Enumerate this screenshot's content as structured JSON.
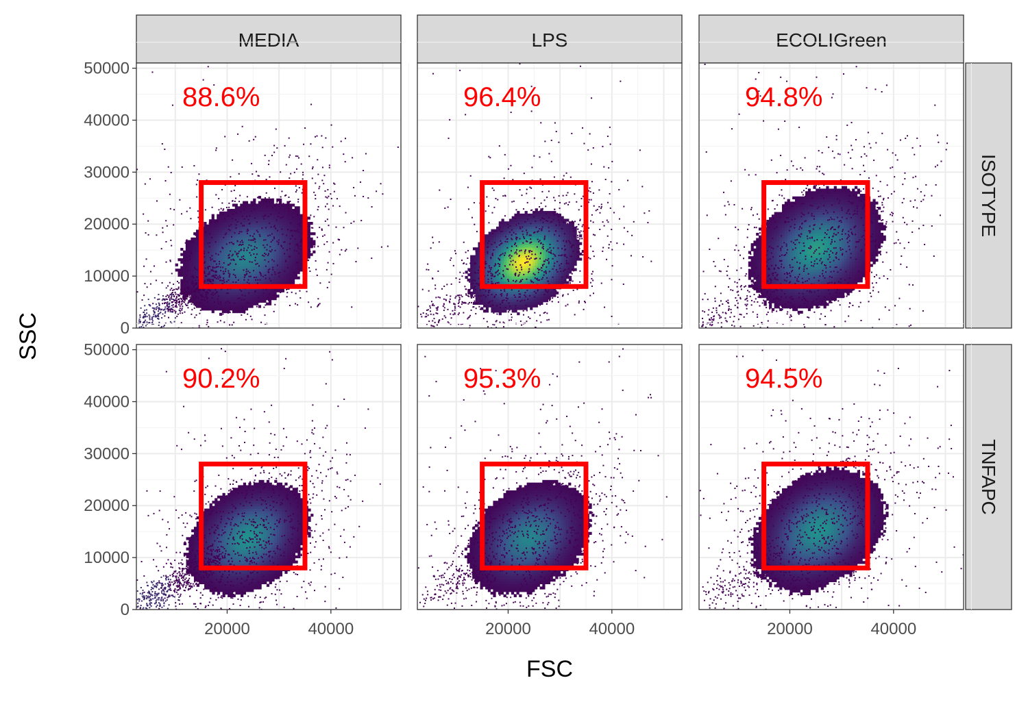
{
  "chart_data": {
    "type": "scatter",
    "xlabel": "FSC",
    "ylabel": "SSC",
    "xlim": [
      2500,
      53500
    ],
    "ylim": [
      0,
      51000
    ],
    "x_ticks": [
      20000,
      40000
    ],
    "x_tick_labels": [
      "20000",
      "40000"
    ],
    "y_ticks": [
      0,
      10000,
      20000,
      30000,
      40000,
      50000
    ],
    "y_tick_labels": [
      "0",
      "10000",
      "20000",
      "30000",
      "40000",
      "50000"
    ],
    "grid": true,
    "columns": [
      "MEDIA",
      "LPS",
      "ECOLIGreen"
    ],
    "rows": [
      "ISOTYPE",
      "TNFAPC"
    ],
    "gate": {
      "x": [
        15000,
        35000
      ],
      "y": [
        8000,
        28000
      ],
      "color": "#ff0000"
    },
    "colormap": [
      "#440154",
      "#3b528b",
      "#21918c",
      "#5ec962",
      "#fde725"
    ],
    "panels": [
      {
        "column": "MEDIA",
        "row": "ISOTYPE",
        "gate_percent": "88.6%",
        "center": [
          23500,
          13500
        ],
        "spread": [
          6500,
          5500
        ],
        "low_tail": true,
        "peak": 0.45
      },
      {
        "column": "LPS",
        "row": "ISOTYPE",
        "gate_percent": "96.4%",
        "center": [
          23000,
          12500
        ],
        "spread": [
          5500,
          5000
        ],
        "low_tail": false,
        "peak": 1.0
      },
      {
        "column": "ECOLIGreen",
        "row": "ISOTYPE",
        "gate_percent": "94.8%",
        "center": [
          25000,
          15000
        ],
        "spread": [
          6500,
          6000
        ],
        "low_tail": false,
        "peak": 0.55
      },
      {
        "column": "MEDIA",
        "row": "TNFAPC",
        "gate_percent": "90.2%",
        "center": [
          24000,
          13500
        ],
        "spread": [
          6000,
          5500
        ],
        "low_tail": true,
        "peak": 0.5
      },
      {
        "column": "LPS",
        "row": "TNFAPC",
        "gate_percent": "95.3%",
        "center": [
          24000,
          13500
        ],
        "spread": [
          6000,
          5500
        ],
        "low_tail": false,
        "peak": 0.45
      },
      {
        "column": "ECOLIGreen",
        "row": "TNFAPC",
        "gate_percent": "94.5%",
        "center": [
          25500,
          15000
        ],
        "spread": [
          6500,
          6000
        ],
        "low_tail": false,
        "peak": 0.5
      }
    ]
  }
}
